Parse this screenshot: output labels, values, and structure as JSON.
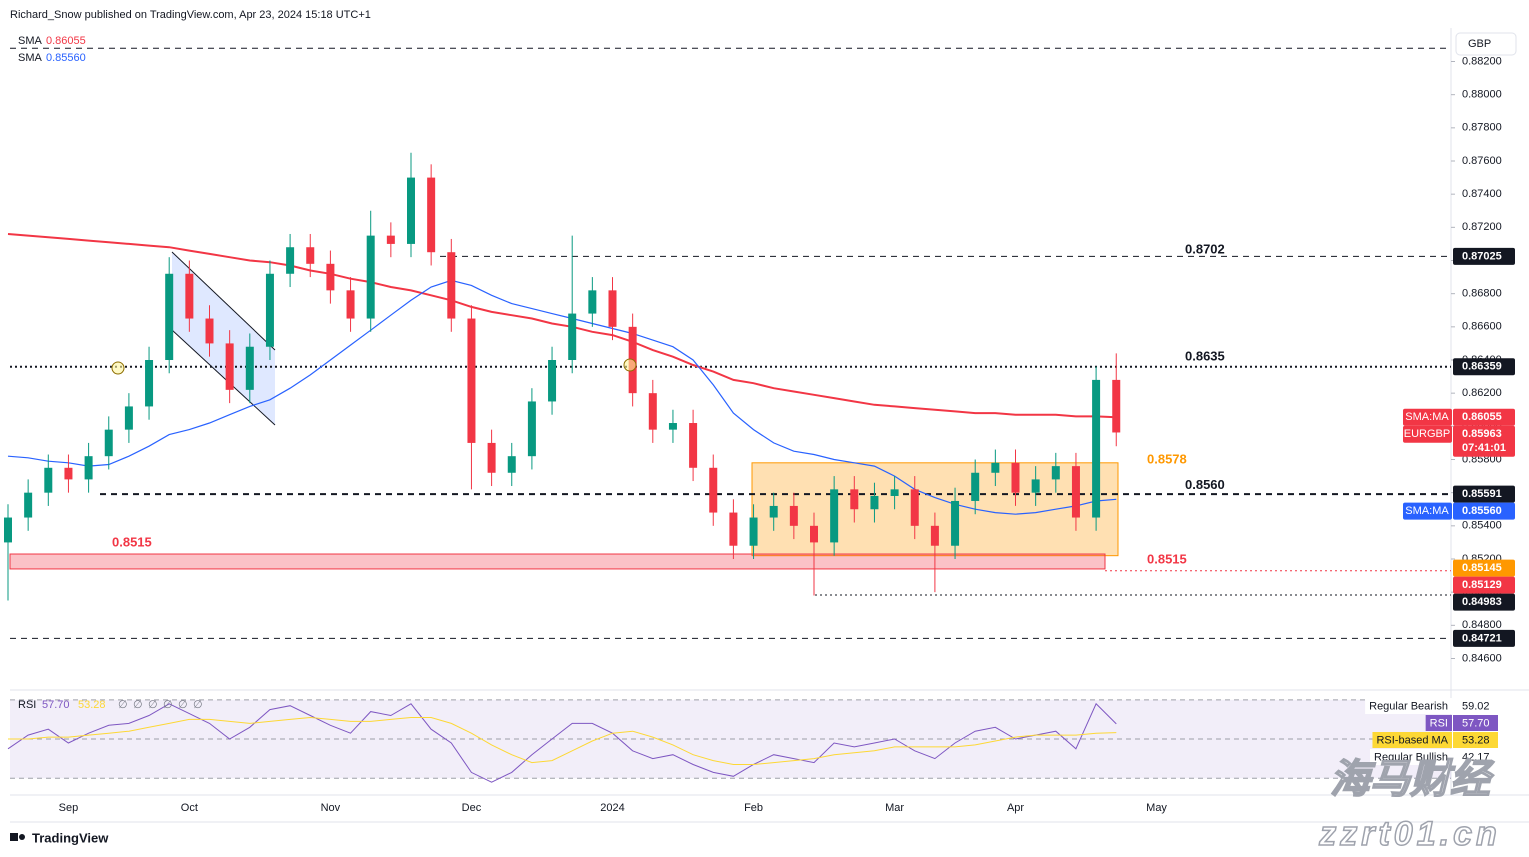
{
  "header": {
    "author_line": "Richard_Snow published on TradingView.com, Apr 23, 2024 15:18 UTC+1",
    "currency": "GBP"
  },
  "footer": {
    "brand": "TradingView"
  },
  "watermark": {
    "name": "海马财经",
    "site": "zzrt01.cn"
  },
  "chart_data": {
    "type": "candlestick",
    "symbol": "EURGBP",
    "countdown": "07:41:01",
    "up_color": "#089981",
    "down_color": "#f23645",
    "grid": false,
    "categories": [
      null,
      null,
      null,
      "Sep",
      null,
      null,
      null,
      null,
      null,
      "Oct",
      null,
      null,
      null,
      null,
      null,
      null,
      "Nov",
      null,
      null,
      null,
      null,
      null,
      null,
      "Dec",
      null,
      null,
      null,
      null,
      null,
      null,
      "2024",
      null,
      null,
      null,
      null,
      null,
      null,
      "Feb",
      null,
      null,
      null,
      null,
      null,
      null,
      "Mar",
      null,
      null,
      null,
      null,
      null,
      "Apr",
      null,
      null,
      null,
      null,
      null,
      null,
      "May"
    ],
    "open": [
      0.853,
      0.8545,
      0.856,
      0.8575,
      0.8568,
      0.8582,
      0.8598,
      0.8612,
      0.864,
      0.8692,
      0.8665,
      0.865,
      0.8622,
      0.8648,
      0.8692,
      0.8708,
      0.8698,
      0.8682,
      0.8665,
      0.8715,
      0.871,
      0.875,
      0.8705,
      0.8665,
      0.859,
      0.8572,
      0.8582,
      0.8615,
      0.864,
      0.8668,
      0.8682,
      0.866,
      0.862,
      0.8598,
      0.8602,
      0.8575,
      0.8548,
      0.8528,
      0.8545,
      0.8552,
      0.854,
      0.853,
      0.8562,
      0.855,
      0.8558,
      0.8562,
      0.854,
      0.8528,
      0.8555,
      0.8572,
      0.8578,
      0.856,
      0.8568,
      0.8576,
      0.8545,
      0.8628,
      null,
      null
    ],
    "high": [
      0.8553,
      0.8568,
      0.8583,
      0.8583,
      0.859,
      0.8606,
      0.862,
      0.8648,
      0.8702,
      0.87,
      0.8673,
      0.8658,
      0.8656,
      0.87,
      0.8716,
      0.8716,
      0.8706,
      0.869,
      0.873,
      0.8723,
      0.8765,
      0.8758,
      0.8713,
      0.8673,
      0.8598,
      0.859,
      0.8623,
      0.8648,
      0.8715,
      0.869,
      0.869,
      0.8668,
      0.8628,
      0.861,
      0.861,
      0.8583,
      0.8556,
      0.8553,
      0.856,
      0.856,
      0.8548,
      0.857,
      0.857,
      0.8566,
      0.857,
      0.857,
      0.8548,
      0.8563,
      0.858,
      0.8586,
      0.8586,
      0.8576,
      0.8584,
      0.8584,
      0.8636,
      0.8644,
      null,
      null
    ],
    "low": [
      0.8495,
      0.8537,
      0.8552,
      0.856,
      0.856,
      0.8574,
      0.859,
      0.8604,
      0.8632,
      0.8657,
      0.8642,
      0.8614,
      0.8614,
      0.864,
      0.8684,
      0.869,
      0.8674,
      0.8657,
      0.8657,
      0.8702,
      0.8702,
      0.8697,
      0.8657,
      0.8562,
      0.8564,
      0.8564,
      0.8574,
      0.8607,
      0.8632,
      0.866,
      0.8652,
      0.8612,
      0.859,
      0.859,
      0.8567,
      0.854,
      0.852,
      0.852,
      0.8537,
      0.8532,
      0.8498,
      0.8522,
      0.8542,
      0.8542,
      0.855,
      0.8532,
      0.85,
      0.852,
      0.8547,
      0.8564,
      0.8552,
      0.8552,
      0.856,
      0.8537,
      0.8537,
      0.8588,
      null,
      null
    ],
    "close": [
      0.8545,
      0.856,
      0.8575,
      0.8568,
      0.8582,
      0.8598,
      0.8612,
      0.864,
      0.8692,
      0.8665,
      0.865,
      0.8622,
      0.8648,
      0.8692,
      0.8708,
      0.8698,
      0.8682,
      0.8665,
      0.8715,
      0.871,
      0.875,
      0.8705,
      0.8665,
      0.859,
      0.8572,
      0.8582,
      0.8615,
      0.864,
      0.8668,
      0.8682,
      0.866,
      0.862,
      0.8598,
      0.8602,
      0.8575,
      0.8548,
      0.8528,
      0.8545,
      0.8552,
      0.854,
      0.853,
      0.8562,
      0.855,
      0.8558,
      0.8562,
      0.854,
      0.8528,
      0.8555,
      0.8572,
      0.8578,
      0.856,
      0.8568,
      0.8576,
      0.8545,
      0.8628,
      0.85963,
      null,
      null
    ],
    "series": [
      {
        "name": "SMA",
        "color": "#f23645",
        "tag": "SMA:MA",
        "values": [
          0.8716,
          0.8715,
          0.8714,
          0.8713,
          0.8712,
          0.8711,
          0.871,
          0.8709,
          0.8708,
          0.8706,
          0.8704,
          0.8702,
          0.87,
          0.8699,
          0.8697,
          0.8694,
          0.8692,
          0.8689,
          0.8687,
          0.8684,
          0.8682,
          0.8679,
          0.8676,
          0.8672,
          0.8669,
          0.8667,
          0.8665,
          0.8662,
          0.866,
          0.8657,
          0.8655,
          0.8651,
          0.8646,
          0.8642,
          0.8637,
          0.8633,
          0.8628,
          0.8626,
          0.8623,
          0.8621,
          0.8619,
          0.8617,
          0.8615,
          0.8613,
          0.8612,
          0.8611,
          0.861,
          0.8609,
          0.8608,
          0.8608,
          0.8607,
          0.8607,
          0.8607,
          0.8606,
          0.8606,
          0.86055,
          null,
          null
        ]
      },
      {
        "name": "SMA",
        "color": "#2962ff",
        "tag": "SMA:MA",
        "values": [
          0.8582,
          0.8581,
          0.8579,
          0.8578,
          0.8576,
          0.8577,
          0.8582,
          0.8588,
          0.8595,
          0.8598,
          0.8602,
          0.8607,
          0.8612,
          0.8616,
          0.8623,
          0.8631,
          0.864,
          0.8649,
          0.8658,
          0.8667,
          0.8676,
          0.8684,
          0.8688,
          0.8685,
          0.8679,
          0.8674,
          0.8671,
          0.8668,
          0.8665,
          0.8662,
          0.8659,
          0.8656,
          0.8652,
          0.8648,
          0.864,
          0.8625,
          0.8608,
          0.8598,
          0.859,
          0.8585,
          0.8583,
          0.858,
          0.8578,
          0.8576,
          0.857,
          0.8562,
          0.8557,
          0.8553,
          0.855,
          0.8548,
          0.8547,
          0.8548,
          0.855,
          0.8552,
          0.8555,
          0.8556,
          null,
          null
        ],
        "value_labels": [
          null,
          null,
          null,
          null,
          null,
          null,
          null,
          null,
          null,
          null,
          null,
          null,
          null,
          null,
          null,
          null,
          null,
          null,
          null,
          null,
          null,
          null,
          null,
          null,
          null,
          null,
          null,
          null,
          null,
          null,
          null,
          null,
          null,
          null,
          null,
          null,
          null,
          null,
          null,
          null,
          null,
          null,
          null,
          null,
          null,
          null,
          null,
          null,
          null,
          null,
          null,
          null,
          null,
          null,
          null,
          "0.85560",
          null,
          null
        ]
      }
    ],
    "ylim": [
      0.8441,
      0.8839
    ],
    "yticks": [
      {
        "value": 0.882,
        "label": "0.88200"
      },
      {
        "value": 0.88,
        "label": "0.88000"
      },
      {
        "value": 0.878,
        "label": "0.87800"
      },
      {
        "value": 0.876,
        "label": "0.87600"
      },
      {
        "value": 0.874,
        "label": "0.87400"
      },
      {
        "value": 0.872,
        "label": "0.87200"
      },
      {
        "value": 0.87,
        "label": "0.87000"
      },
      {
        "value": 0.868,
        "label": "0.86800"
      },
      {
        "value": 0.866,
        "label": "0.86600"
      },
      {
        "value": 0.864,
        "label": "0.86400"
      },
      {
        "value": 0.862,
        "label": "0.86200"
      },
      {
        "value": 0.86,
        "label": "0.86000"
      },
      {
        "value": 0.858,
        "label": "0.85800"
      },
      {
        "value": 0.856,
        "label": "0.85600"
      },
      {
        "value": 0.854,
        "label": "0.85400"
      },
      {
        "value": 0.852,
        "label": "0.85200"
      },
      {
        "value": 0.85,
        "label": "0.85000"
      },
      {
        "value": 0.848,
        "label": "0.84800"
      },
      {
        "value": 0.846,
        "label": "0.84600"
      }
    ],
    "price_lines": [
      {
        "value": 0.8828,
        "style": "dashed",
        "color": "#131722",
        "axis_box": false
      },
      {
        "value": 0.87025,
        "style": "dashed",
        "color": "#131722",
        "axis_box": true
      },
      {
        "value": 0.86359,
        "style": "dotted",
        "color": "#131722",
        "axis_box": true
      },
      {
        "value": 0.85591,
        "style": "dashed",
        "color": "#131722",
        "axis_box": true
      },
      {
        "value": 0.85145,
        "style": "none",
        "color": "#ff9800",
        "axis_box": true
      },
      {
        "value": 0.85129,
        "style": "dotted",
        "color": "#f23645",
        "axis_box": true
      },
      {
        "value": 0.84983,
        "style": "dotted",
        "color": "#131722",
        "axis_box": true
      },
      {
        "value": 0.84721,
        "style": "dashed",
        "color": "#131722",
        "axis_box": true
      }
    ],
    "annotations": [
      {
        "value": 0.8702,
        "color": "#131722"
      },
      {
        "value": 0.8635,
        "color": "#131722"
      },
      {
        "value": 0.8578,
        "color": "#ff9800"
      },
      {
        "value": 0.856,
        "label": "0.8560",
        "color": "#131722"
      },
      {
        "value": 0.8515,
        "color": "#f23645"
      },
      {
        "value": 0.8515,
        "color": "#f23645"
      }
    ],
    "zones": [
      {
        "top": 0.8578,
        "bottom": 0.8522,
        "color": "#ff9800"
      },
      {
        "top": 0.8523,
        "bottom": 0.8514,
        "color": "#f23645"
      }
    ],
    "rsi": {
      "ylim": [
        24,
        74
      ],
      "levels": [
        30,
        50,
        70
      ],
      "na_values": [
        "∅",
        "∅",
        "∅",
        "∅",
        "∅",
        "∅"
      ],
      "series": [
        {
          "name": "RSI",
          "color": "#7e57c2",
          "values": [
            45,
            52,
            55,
            48,
            53,
            57,
            58,
            62,
            68,
            63,
            58,
            50,
            56,
            65,
            67,
            62,
            57,
            53,
            64,
            62,
            68,
            55,
            48,
            33,
            28,
            33,
            42,
            50,
            58,
            58,
            53,
            44,
            40,
            42,
            37,
            33,
            31,
            37,
            42,
            40,
            38,
            48,
            46,
            48,
            50,
            44,
            40,
            48,
            54,
            56,
            50,
            52,
            54,
            45,
            68,
            57.7,
            null,
            null
          ],
          "value_labels": [
            null,
            null,
            null,
            null,
            null,
            null,
            null,
            null,
            null,
            null,
            null,
            null,
            null,
            null,
            null,
            null,
            null,
            null,
            null,
            null,
            null,
            null,
            null,
            null,
            null,
            null,
            null,
            null,
            null,
            null,
            null,
            null,
            null,
            null,
            null,
            null,
            null,
            null,
            null,
            null,
            null,
            null,
            null,
            null,
            null,
            null,
            null,
            null,
            null,
            null,
            null,
            null,
            null,
            null,
            null,
            "57.70",
            null,
            null
          ]
        },
        {
          "name": "RSI-based MA",
          "color": "#fdd835",
          "values": [
            50,
            50,
            51,
            51,
            52,
            53,
            54,
            56,
            58,
            60,
            60,
            59,
            58,
            59,
            60,
            61,
            60,
            59,
            59,
            60,
            61,
            61,
            58,
            53,
            47,
            42,
            38,
            39,
            44,
            49,
            53,
            54,
            51,
            47,
            42,
            39,
            37,
            37,
            38,
            39,
            40,
            42,
            43,
            44,
            46,
            46,
            46,
            46,
            47,
            49,
            51,
            52,
            52,
            52,
            53,
            53.28,
            null,
            null
          ]
        }
      ],
      "markers": [
        {
          "name": "Regular Bearish",
          "value": 59.02
        },
        {
          "name": "Regular Bullish",
          "value": 42.17
        }
      ]
    }
  }
}
